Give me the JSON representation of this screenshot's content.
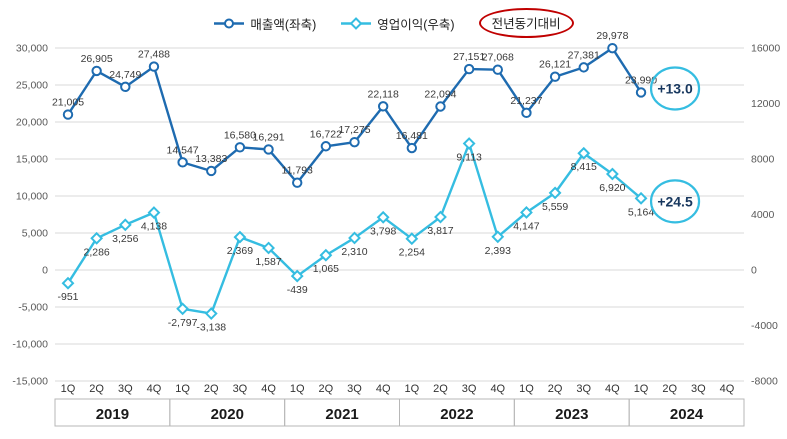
{
  "legend": {
    "revenue_label": "매출액(좌축)",
    "profit_label": "영업이익(우축)",
    "yoy_label": "전년동기대비"
  },
  "colors": {
    "revenue": "#1E6BB0",
    "profit": "#35BDE1",
    "data_label": "#3A3A3A",
    "axis_label": "#595959",
    "gridline": "#D8D8D8",
    "annotation_stroke": "#35BDE1",
    "annotation_text": "#17375E",
    "yoy_ellipse": "#C00000",
    "year_box_border": "#B7B7B7",
    "year_text": "#1A1A1A",
    "quarter_label": "#333333"
  },
  "chart_data": {
    "type": "line",
    "title": "",
    "years": [
      "2019",
      "2020",
      "2021",
      "2022",
      "2023",
      "2024"
    ],
    "quarter_labels": [
      "1Q",
      "2Q",
      "3Q",
      "4Q"
    ],
    "series": [
      {
        "name": "매출액(좌축)",
        "axis": "left",
        "marker": "circle",
        "values": [
          21005,
          26905,
          24749,
          27488,
          14547,
          13383,
          16580,
          16291,
          11793,
          16722,
          17275,
          22118,
          16481,
          22094,
          27151,
          27068,
          21237,
          26121,
          27381,
          29978,
          23990
        ]
      },
      {
        "name": "영업이익(우축)",
        "axis": "right",
        "marker": "diamond",
        "values": [
          -951,
          2286,
          3256,
          4138,
          -2797,
          -3138,
          2369,
          1587,
          -439,
          1065,
          2310,
          3798,
          2254,
          3817,
          9113,
          2393,
          4147,
          5559,
          8415,
          6920,
          5164
        ]
      }
    ],
    "left_axis": {
      "max": 30000,
      "min": -15000,
      "step": 5000,
      "ticks": [
        "30,000",
        "25,000",
        "20,000",
        "15,000",
        "10,000",
        "5,000",
        "0",
        "-5,000",
        "-10,000",
        "-15,000"
      ]
    },
    "right_axis": {
      "max": 16000,
      "min": -8000,
      "step": 4000,
      "ticks": [
        "16000",
        "12000",
        "8000",
        "4000",
        "0",
        "-4000",
        "-8000"
      ]
    },
    "annotations": [
      {
        "text": "+13.0",
        "series": 0
      },
      {
        "text": "+24.5",
        "series": 1
      }
    ],
    "legend_position": "top",
    "grid": "horizontal"
  }
}
